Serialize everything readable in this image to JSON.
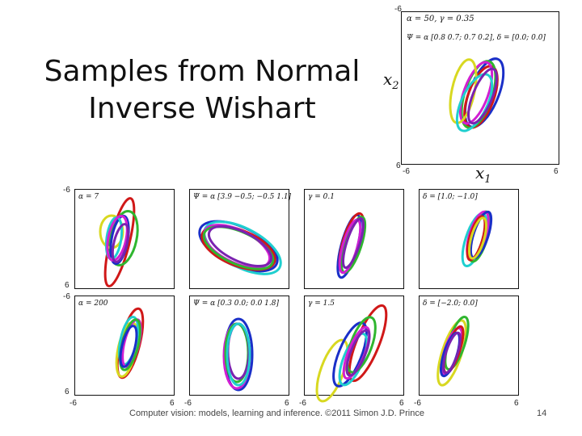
{
  "slide": {
    "title_line1": "Samples from Normal",
    "title_line2": "Inverse Wishart",
    "footer": "Computer vision: models, learning and inference.  ©2011 Simon J.D. Prince",
    "page_number": "14"
  },
  "main_plot": {
    "label_line1": "α = 50, γ = 0.35",
    "label_line2": "Ψ = α [0.8 0.7; 0.7 0.2], δ = [0.0; 0.0]",
    "x_label": "x",
    "x_sub": "1",
    "y_label": "x",
    "y_sub": "2",
    "tick_neg": "-6",
    "tick_pos": "6"
  },
  "grid_ticks": {
    "neg": "-6",
    "pos": "6"
  },
  "panels": [
    {
      "id": "alpha-7",
      "label": "α = 7"
    },
    {
      "id": "psi-wide",
      "label": "Ψ = α [3.9 −0.5; −0.5 1.1]"
    },
    {
      "id": "gamma-01",
      "label": "γ = 0.1"
    },
    {
      "id": "delta-1",
      "label": "δ = [1.0; −1.0]"
    },
    {
      "id": "alpha-200",
      "label": "α = 200"
    },
    {
      "id": "psi-tall",
      "label": "Ψ = α [0.3 0.0; 0.0 1.8]"
    },
    {
      "id": "gamma-15",
      "label": "γ = 1.5"
    },
    {
      "id": "delta-2",
      "label": "δ = [−2.0; 0.0]"
    }
  ],
  "colors": {
    "red": "#d01818",
    "blue": "#1a2fc8",
    "green": "#2fb62f",
    "magenta": "#d21fd2",
    "cyan": "#1fcfcf",
    "yellow": "#d8d820",
    "gray": "#888888",
    "purple": "#7a22b0"
  }
}
